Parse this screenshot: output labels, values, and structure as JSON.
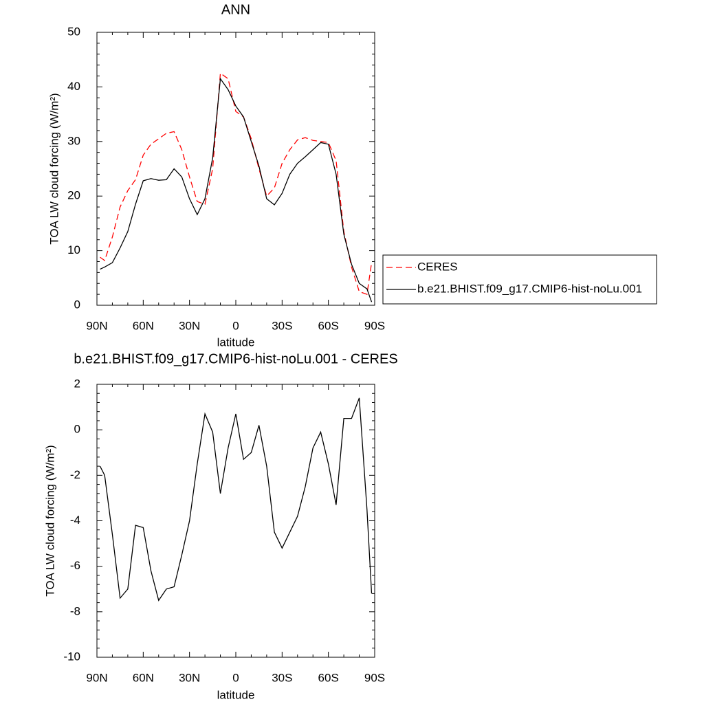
{
  "chart_data": [
    {
      "type": "line",
      "title": "ANN",
      "xlabel": "latitude",
      "ylabel": "TOA LW cloud forcing (W/m²)",
      "x": [
        88,
        85,
        80,
        75,
        70,
        65,
        60,
        55,
        50,
        45,
        40,
        35,
        30,
        25,
        20,
        15,
        10,
        5,
        0,
        -5,
        -10,
        -15,
        -20,
        -25,
        -30,
        -35,
        -40,
        -45,
        -50,
        -55,
        -60,
        -65,
        -70,
        -75,
        -80,
        -85,
        -88
      ],
      "series": [
        {
          "name": "CERES",
          "color": "#ff0000",
          "linestyle": "dashed",
          "values": [
            8.8,
            8.2,
            12.5,
            18,
            21,
            23,
            27.5,
            29.5,
            30.5,
            31.5,
            31.8,
            28.5,
            23.5,
            19,
            18.5,
            25,
            42.5,
            41.5,
            35.5,
            34.5,
            30.5,
            25,
            20,
            21.5,
            26,
            28.5,
            30.3,
            30.7,
            30.2,
            30,
            29.8,
            26.5,
            13.5,
            7,
            2.5,
            2,
            7.8
          ]
        },
        {
          "name": "b.e21.BHIST.f09_g17.CMIP6-hist-noLu.001",
          "color": "#000000",
          "linestyle": "solid",
          "values": [
            6.6,
            7,
            7.8,
            10.5,
            13.5,
            18.5,
            22.8,
            23.2,
            22.9,
            23,
            25,
            23.5,
            19.5,
            16.6,
            19.5,
            27,
            41.5,
            39.5,
            36.5,
            34.5,
            30,
            25.5,
            19.5,
            18.4,
            20.5,
            24,
            26,
            27.2,
            28.5,
            29.8,
            29.5,
            24,
            13,
            7.5,
            4,
            3,
            0.6
          ]
        }
      ],
      "xlim": [
        90,
        -90
      ],
      "xticks": [
        {
          "value": 90,
          "label": "90N"
        },
        {
          "value": 60,
          "label": "60N"
        },
        {
          "value": 30,
          "label": "30N"
        },
        0,
        {
          "value": -30,
          "label": "30S"
        },
        {
          "value": -60,
          "label": "60S"
        },
        {
          "value": -90,
          "label": "90S"
        }
      ],
      "ylim": [
        0,
        50
      ],
      "yticks": [
        0,
        10,
        20,
        30,
        40,
        50
      ],
      "legend": "right"
    },
    {
      "type": "line",
      "title": "b.e21.BHIST.f09_g17.CMIP6-hist-noLu.001 - CERES",
      "xlabel": "latitude",
      "ylabel": "TOA LW cloud forcing (W/m²)",
      "x": [
        88,
        85,
        80,
        75,
        70,
        65,
        60,
        55,
        50,
        45,
        40,
        35,
        30,
        25,
        20,
        15,
        10,
        5,
        0,
        -5,
        -10,
        -15,
        -20,
        -25,
        -30,
        -35,
        -40,
        -45,
        -50,
        -55,
        -60,
        -65,
        -70,
        -75,
        -80,
        -85,
        -88
      ],
      "color": "#000000",
      "linestyle": "solid",
      "values": [
        -1.6,
        -2,
        -4.6,
        -7.4,
        -7,
        -4.2,
        -4.3,
        -6.2,
        -7.5,
        -7,
        -6.9,
        -5.5,
        -4,
        -1.5,
        0.7,
        -0.1,
        -2.8,
        -0.8,
        0.7,
        -1.3,
        -1,
        0.2,
        -1.6,
        -4.5,
        -5.2,
        -4.5,
        -3.8,
        -2.5,
        -0.8,
        -0.1,
        -1.5,
        -3.3,
        0.5,
        0.5,
        1.4,
        -3.5,
        -7.2
      ],
      "xlim": [
        90,
        -90
      ],
      "xticks": [
        {
          "value": 90,
          "label": "90N"
        },
        {
          "value": 60,
          "label": "60N"
        },
        {
          "value": 30,
          "label": "30N"
        },
        0,
        {
          "value": -30,
          "label": "30S"
        },
        {
          "value": -60,
          "label": "60S"
        },
        {
          "value": -90,
          "label": "90S"
        }
      ],
      "ylim": [
        -10,
        2
      ],
      "yticks": [
        -10,
        -8,
        -6,
        -4,
        -2,
        0,
        2
      ]
    }
  ]
}
